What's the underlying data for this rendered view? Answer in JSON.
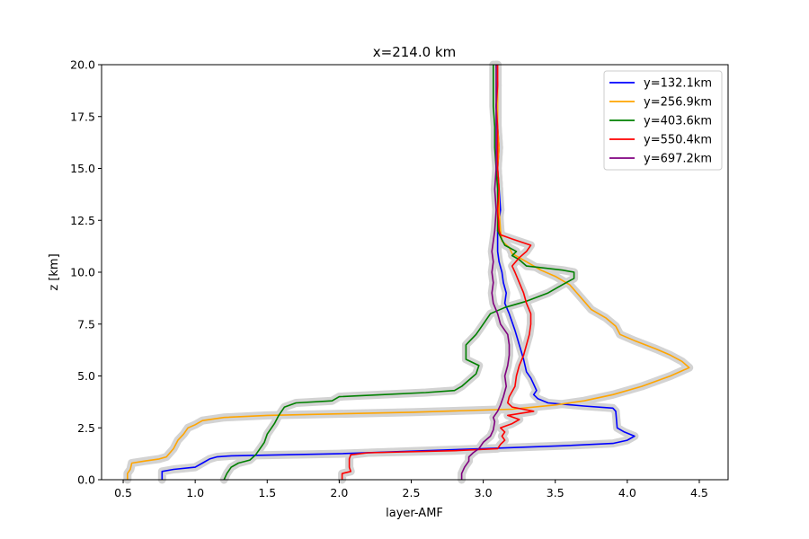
{
  "chart_data": {
    "type": "line",
    "title": "x=214.0 km",
    "xlabel": "layer-AMF",
    "ylabel": "z [km]",
    "xlim": [
      0.35,
      4.7
    ],
    "ylim": [
      0,
      20
    ],
    "xticks": [
      "0.5",
      "1.0",
      "1.5",
      "2.0",
      "2.5",
      "3.0",
      "3.5",
      "4.0",
      "4.5"
    ],
    "yticks": [
      "0.0",
      "2.5",
      "5.0",
      "7.5",
      "10.0",
      "12.5",
      "15.0",
      "17.5",
      "20.0"
    ],
    "grid": false,
    "legend_position": "top-right",
    "uncertainty_band_color": "#d3d3d3",
    "series": [
      {
        "name": "y=132.1km",
        "color": "#0000ff",
        "points": [
          [
            0.77,
            0.0
          ],
          [
            0.77,
            0.4
          ],
          [
            0.85,
            0.5
          ],
          [
            1.0,
            0.6
          ],
          [
            1.05,
            0.8
          ],
          [
            1.1,
            1.0
          ],
          [
            1.15,
            1.1
          ],
          [
            1.25,
            1.15
          ],
          [
            2.0,
            1.25
          ],
          [
            3.0,
            1.5
          ],
          [
            3.6,
            1.65
          ],
          [
            3.9,
            1.75
          ],
          [
            4.0,
            1.9
          ],
          [
            4.05,
            2.1
          ],
          [
            3.98,
            2.3
          ],
          [
            3.93,
            2.5
          ],
          [
            3.92,
            3.3
          ],
          [
            3.9,
            3.45
          ],
          [
            3.7,
            3.55
          ],
          [
            3.45,
            3.7
          ],
          [
            3.38,
            3.9
          ],
          [
            3.35,
            4.1
          ],
          [
            3.37,
            4.3
          ],
          [
            3.35,
            4.6
          ],
          [
            3.33,
            4.9
          ],
          [
            3.3,
            5.2
          ],
          [
            3.28,
            5.8
          ],
          [
            3.25,
            6.5
          ],
          [
            3.22,
            7.2
          ],
          [
            3.18,
            8.0
          ],
          [
            3.15,
            8.5
          ],
          [
            3.16,
            9.0
          ],
          [
            3.14,
            9.5
          ],
          [
            3.13,
            10.0
          ],
          [
            3.11,
            10.5
          ],
          [
            3.1,
            11.0
          ],
          [
            3.1,
            12.0
          ],
          [
            3.12,
            13.0
          ],
          [
            3.11,
            14.0
          ],
          [
            3.1,
            15.0
          ],
          [
            3.11,
            16.0
          ],
          [
            3.1,
            17.0
          ],
          [
            3.09,
            18.0
          ],
          [
            3.1,
            19.0
          ],
          [
            3.09,
            20.0
          ]
        ]
      },
      {
        "name": "y=256.9km",
        "color": "#ffa500",
        "points": [
          [
            0.53,
            0.0
          ],
          [
            0.53,
            0.3
          ],
          [
            0.55,
            0.5
          ],
          [
            0.56,
            0.8
          ],
          [
            0.65,
            0.9
          ],
          [
            0.75,
            1.0
          ],
          [
            0.8,
            1.1
          ],
          [
            0.85,
            1.5
          ],
          [
            0.88,
            1.9
          ],
          [
            0.92,
            2.2
          ],
          [
            0.95,
            2.5
          ],
          [
            1.0,
            2.65
          ],
          [
            1.05,
            2.85
          ],
          [
            1.2,
            3.0
          ],
          [
            1.5,
            3.1
          ],
          [
            2.5,
            3.25
          ],
          [
            3.2,
            3.4
          ],
          [
            3.5,
            3.6
          ],
          [
            3.7,
            3.8
          ],
          [
            3.9,
            4.1
          ],
          [
            4.1,
            4.5
          ],
          [
            4.3,
            5.0
          ],
          [
            4.43,
            5.4
          ],
          [
            4.38,
            5.7
          ],
          [
            4.3,
            6.0
          ],
          [
            4.2,
            6.3
          ],
          [
            4.05,
            6.7
          ],
          [
            3.95,
            7.0
          ],
          [
            3.92,
            7.4
          ],
          [
            3.85,
            7.8
          ],
          [
            3.75,
            8.2
          ],
          [
            3.7,
            8.6
          ],
          [
            3.65,
            9.0
          ],
          [
            3.6,
            9.4
          ],
          [
            3.5,
            9.8
          ],
          [
            3.4,
            10.1
          ],
          [
            3.3,
            10.5
          ],
          [
            3.2,
            10.9
          ],
          [
            3.18,
            11.2
          ],
          [
            3.13,
            11.5
          ],
          [
            3.12,
            12.0
          ],
          [
            3.11,
            13.0
          ],
          [
            3.11,
            14.0
          ],
          [
            3.1,
            15.0
          ],
          [
            3.11,
            16.0
          ],
          [
            3.1,
            17.0
          ],
          [
            3.1,
            18.0
          ],
          [
            3.1,
            19.0
          ],
          [
            3.09,
            20.0
          ]
        ]
      },
      {
        "name": "y=403.6km",
        "color": "#008000",
        "points": [
          [
            1.2,
            0.0
          ],
          [
            1.22,
            0.3
          ],
          [
            1.25,
            0.6
          ],
          [
            1.3,
            0.8
          ],
          [
            1.38,
            0.95
          ],
          [
            1.42,
            1.2
          ],
          [
            1.45,
            1.5
          ],
          [
            1.48,
            1.8
          ],
          [
            1.5,
            2.2
          ],
          [
            1.55,
            2.7
          ],
          [
            1.58,
            3.1
          ],
          [
            1.62,
            3.5
          ],
          [
            1.7,
            3.7
          ],
          [
            1.95,
            3.8
          ],
          [
            2.0,
            4.0
          ],
          [
            2.3,
            4.1
          ],
          [
            2.6,
            4.2
          ],
          [
            2.8,
            4.3
          ],
          [
            2.85,
            4.5
          ],
          [
            2.9,
            4.8
          ],
          [
            2.95,
            5.1
          ],
          [
            2.97,
            5.5
          ],
          [
            2.88,
            5.8
          ],
          [
            2.88,
            6.5
          ],
          [
            2.95,
            7.0
          ],
          [
            3.0,
            7.5
          ],
          [
            3.05,
            8.0
          ],
          [
            3.15,
            8.3
          ],
          [
            3.3,
            8.6
          ],
          [
            3.45,
            9.0
          ],
          [
            3.55,
            9.4
          ],
          [
            3.63,
            9.7
          ],
          [
            3.63,
            10.0
          ],
          [
            3.55,
            10.1
          ],
          [
            3.3,
            10.3
          ],
          [
            3.25,
            10.6
          ],
          [
            3.2,
            10.8
          ],
          [
            3.23,
            11.0
          ],
          [
            3.15,
            11.3
          ],
          [
            3.12,
            11.7
          ],
          [
            3.1,
            12.0
          ],
          [
            3.1,
            13.0
          ],
          [
            3.1,
            14.0
          ],
          [
            3.09,
            15.0
          ],
          [
            3.08,
            16.0
          ],
          [
            3.08,
            17.0
          ],
          [
            3.07,
            18.0
          ],
          [
            3.07,
            19.0
          ],
          [
            3.07,
            20.0
          ]
        ]
      },
      {
        "name": "y=550.4km",
        "color": "#ff0000",
        "points": [
          [
            2.02,
            0.0
          ],
          [
            2.02,
            0.3
          ],
          [
            2.08,
            0.4
          ],
          [
            2.07,
            0.6
          ],
          [
            2.07,
            1.0
          ],
          [
            2.08,
            1.2
          ],
          [
            2.2,
            1.3
          ],
          [
            2.8,
            1.4
          ],
          [
            3.1,
            1.5
          ],
          [
            3.12,
            1.7
          ],
          [
            3.15,
            1.9
          ],
          [
            3.13,
            2.1
          ],
          [
            3.15,
            2.3
          ],
          [
            3.12,
            2.5
          ],
          [
            3.2,
            2.7
          ],
          [
            3.25,
            2.9
          ],
          [
            3.17,
            3.1
          ],
          [
            3.35,
            3.3
          ],
          [
            3.2,
            3.5
          ],
          [
            3.17,
            3.7
          ],
          [
            3.18,
            4.0
          ],
          [
            3.22,
            4.5
          ],
          [
            3.23,
            5.0
          ],
          [
            3.25,
            5.5
          ],
          [
            3.28,
            6.0
          ],
          [
            3.3,
            6.5
          ],
          [
            3.32,
            7.0
          ],
          [
            3.33,
            7.5
          ],
          [
            3.33,
            8.0
          ],
          [
            3.3,
            8.5
          ],
          [
            3.28,
            9.0
          ],
          [
            3.25,
            9.5
          ],
          [
            3.22,
            10.0
          ],
          [
            3.2,
            10.3
          ],
          [
            3.25,
            10.7
          ],
          [
            3.3,
            11.0
          ],
          [
            3.33,
            11.3
          ],
          [
            3.2,
            11.6
          ],
          [
            3.12,
            11.8
          ],
          [
            3.11,
            12.0
          ],
          [
            3.1,
            13.0
          ],
          [
            3.11,
            14.0
          ],
          [
            3.1,
            15.0
          ],
          [
            3.1,
            16.0
          ],
          [
            3.1,
            17.0
          ],
          [
            3.09,
            18.0
          ],
          [
            3.1,
            19.0
          ],
          [
            3.1,
            20.0
          ]
        ]
      },
      {
        "name": "y=697.2km",
        "color": "#800080",
        "points": [
          [
            2.85,
            0.0
          ],
          [
            2.85,
            0.3
          ],
          [
            2.87,
            0.6
          ],
          [
            2.9,
            0.9
          ],
          [
            2.9,
            1.1
          ],
          [
            2.93,
            1.3
          ],
          [
            2.97,
            1.5
          ],
          [
            3.0,
            1.8
          ],
          [
            3.05,
            2.1
          ],
          [
            3.07,
            2.4
          ],
          [
            3.08,
            2.8
          ],
          [
            3.07,
            3.0
          ],
          [
            3.1,
            3.3
          ],
          [
            3.12,
            3.6
          ],
          [
            3.14,
            4.0
          ],
          [
            3.16,
            4.5
          ],
          [
            3.15,
            5.0
          ],
          [
            3.17,
            5.5
          ],
          [
            3.18,
            6.0
          ],
          [
            3.18,
            6.5
          ],
          [
            3.17,
            7.0
          ],
          [
            3.12,
            7.5
          ],
          [
            3.1,
            8.0
          ],
          [
            3.07,
            8.5
          ],
          [
            3.06,
            9.0
          ],
          [
            3.07,
            9.5
          ],
          [
            3.06,
            10.0
          ],
          [
            3.07,
            10.5
          ],
          [
            3.06,
            11.0
          ],
          [
            3.07,
            11.5
          ],
          [
            3.08,
            12.0
          ],
          [
            3.09,
            13.0
          ],
          [
            3.08,
            14.0
          ],
          [
            3.09,
            15.0
          ],
          [
            3.09,
            16.0
          ],
          [
            3.09,
            17.0
          ],
          [
            3.09,
            18.0
          ],
          [
            3.09,
            19.0
          ],
          [
            3.09,
            20.0
          ]
        ]
      }
    ]
  }
}
